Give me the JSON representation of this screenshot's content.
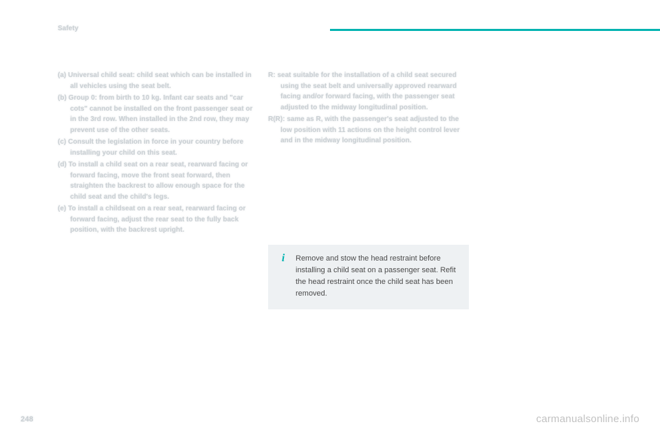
{
  "header": {
    "title": "Safety"
  },
  "footer": {
    "page_number": "248",
    "watermark": "carmanualsonline.info"
  },
  "left_column": {
    "items": [
      "(a) Universal child seat: child seat which can be installed in all vehicles using the seat belt.",
      "(b) Group 0: from birth to 10 kg. Infant car seats and \"car cots\" cannot be installed on the front passenger seat or in the 3rd row. When installed in the 2nd row, they may prevent use of the other seats.",
      "(c) Consult the legislation in force in your country before installing your child on this seat.",
      "(d) To install a child seat on a rear seat, rearward facing or forward facing, move the front seat forward, then straighten the backrest to allow enough space for the child seat and the child's legs.",
      "(e) To install a childseat on a rear seat, rearward facing or forward facing, adjust the rear seat to the fully back position, with the backrest upright."
    ]
  },
  "right_column": {
    "items": [
      "R: seat suitable for the installation of a child seat secured using the seat belt and universally approved rearward facing and/or forward facing, with the passenger seat adjusted to the midway longitudinal position.",
      "R(R): same as R, with the passenger's seat adjusted to the low position with 11 actions on the height control lever and in the midway longitudinal position."
    ]
  },
  "info_box": {
    "text": "Remove and stow the head restraint before installing a child seat on a passenger seat. Refit the head restraint once the child seat has been removed."
  },
  "colors": {
    "accent": "#00b3b0",
    "box_bg": "#eef1f3",
    "blur_text": "#c9cfd3",
    "body_text": "#4a4a4a"
  }
}
